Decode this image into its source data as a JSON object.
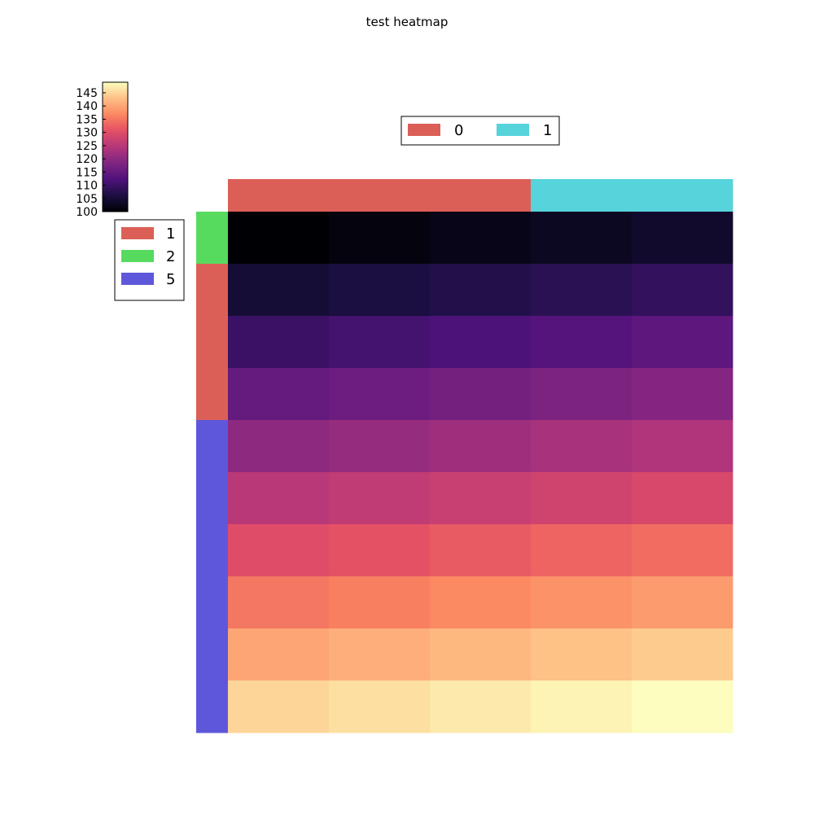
{
  "chart_data": {
    "type": "heatmap",
    "title": "test heatmap",
    "rows": 10,
    "cols": 5,
    "values": [
      [
        100,
        101,
        102,
        103,
        104
      ],
      [
        105,
        106,
        107,
        108,
        109
      ],
      [
        110,
        111,
        112,
        113,
        114
      ],
      [
        115,
        116,
        117,
        118,
        119
      ],
      [
        120,
        121,
        122,
        123,
        124
      ],
      [
        125,
        126,
        127,
        128,
        129
      ],
      [
        130,
        131,
        132,
        133,
        134
      ],
      [
        135,
        136,
        137,
        138,
        139
      ],
      [
        140,
        141,
        142,
        143,
        144
      ],
      [
        145,
        146,
        147,
        148,
        149
      ]
    ],
    "colorbar": {
      "colormap": "magma",
      "range": [
        100,
        149
      ],
      "ticks": [
        "100",
        "105",
        "110",
        "115",
        "120",
        "125",
        "130",
        "135",
        "140",
        "145"
      ]
    },
    "row_annotation": {
      "groups": [
        "2",
        "1",
        "1",
        "1",
        "5",
        "5",
        "5",
        "5",
        "5",
        "5"
      ],
      "legend": [
        {
          "label": "1",
          "color": "#db5f57"
        },
        {
          "label": "2",
          "color": "#57db5f"
        },
        {
          "label": "5",
          "color": "#5f57db"
        }
      ]
    },
    "col_annotation": {
      "groups": [
        "0",
        "0",
        "0",
        "1",
        "1"
      ],
      "legend": [
        {
          "label": "0",
          "color": "#db5f57"
        },
        {
          "label": "1",
          "color": "#57d3db"
        }
      ]
    }
  }
}
